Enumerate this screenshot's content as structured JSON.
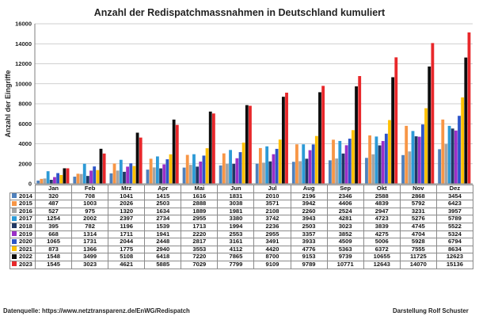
{
  "footer": {
    "source": "Datenquelle:  https://www.netztransparenz.de/EnWG/Redispatch",
    "author": "Darstellung  Rolf Schuster"
  },
  "chart_data": {
    "type": "bar",
    "title": "Anzahl der Redispatchmassnahmen in Deutschland     kumuliert",
    "xlabel": "",
    "ylabel": "Anzahl der Eingriffe",
    "ylim": [
      0,
      16000
    ],
    "yticks": [
      0,
      2000,
      4000,
      6000,
      8000,
      10000,
      12000,
      14000,
      16000
    ],
    "grid": true,
    "legend": "data table below chart",
    "categories": [
      "Jan",
      "Feb",
      "Mrz",
      "Apr",
      "Mai",
      "Jun",
      "Jul",
      "Aug",
      "Sep",
      "Okt",
      "Nov",
      "Dez"
    ],
    "series": [
      {
        "name": "2014",
        "color": "#4f81bd",
        "values": [
          320,
          708,
          1041,
          1415,
          1616,
          1831,
          2010,
          2196,
          2346,
          2588,
          2868,
          3454
        ]
      },
      {
        "name": "2015",
        "color": "#f79646",
        "values": [
          487,
          1003,
          2026,
          2503,
          2888,
          3038,
          3571,
          3942,
          4406,
          4839,
          5792,
          6423
        ]
      },
      {
        "name": "2016",
        "color": "#a5a5a5",
        "values": [
          527,
          975,
          1320,
          1634,
          1889,
          1981,
          2108,
          2260,
          2524,
          2947,
          3231,
          3957
        ]
      },
      {
        "name": "2017",
        "color": "#2d9ad6",
        "values": [
          1254,
          2002,
          2397,
          2734,
          2955,
          3380,
          3742,
          3943,
          4281,
          4723,
          5276,
          5789
        ]
      },
      {
        "name": "2018",
        "color": "#203864",
        "values": [
          395,
          782,
          1196,
          1539,
          1713,
          1994,
          2236,
          2503,
          3023,
          3839,
          4745,
          5522
        ]
      },
      {
        "name": "2019",
        "color": "#9b30c7",
        "values": [
          668,
          1314,
          1711,
          1941,
          2220,
          2553,
          2955,
          3357,
          3852,
          4275,
          4704,
          5324
        ]
      },
      {
        "name": "2020",
        "color": "#2d55c8",
        "values": [
          1065,
          1731,
          2044,
          2448,
          2817,
          3161,
          3491,
          3933,
          4509,
          5006,
          5928,
          6794
        ]
      },
      {
        "name": "2021",
        "color": "#ffc000",
        "values": [
          873,
          1366,
          1775,
          2940,
          3553,
          4112,
          4420,
          4776,
          5363,
          6372,
          7555,
          8634
        ]
      },
      {
        "name": "2022",
        "color": "#0d0d0d",
        "values": [
          1548,
          3499,
          5108,
          6418,
          7220,
          7865,
          8700,
          9153,
          9739,
          10655,
          11725,
          12623
        ]
      },
      {
        "name": "2023",
        "color": "#e8282b",
        "values": [
          1545,
          3023,
          4621,
          5885,
          7029,
          7799,
          9109,
          9789,
          10771,
          12643,
          14070,
          15136
        ]
      }
    ]
  }
}
